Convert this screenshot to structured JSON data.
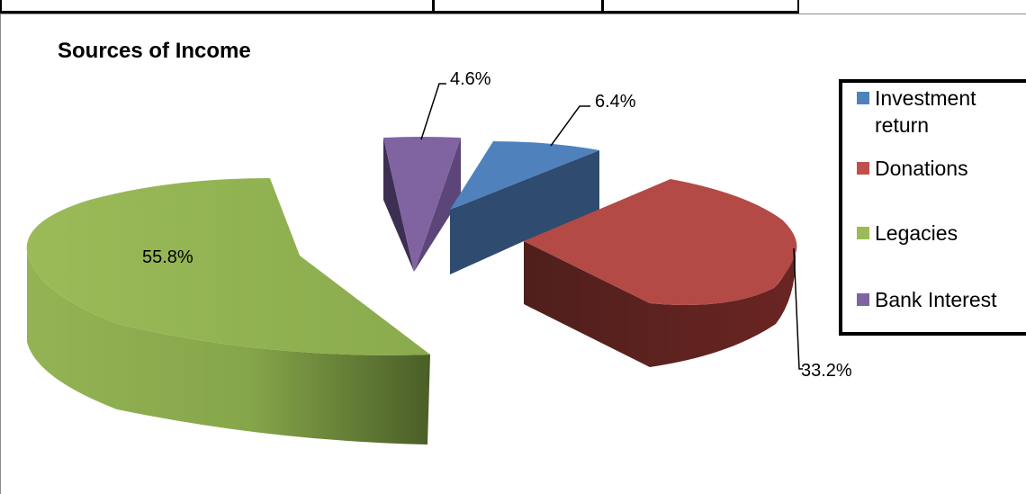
{
  "chart_data": {
    "type": "pie",
    "title": "Sources of Income",
    "labels": [
      "Investment return",
      "Donations",
      "Legacies",
      "Bank Interest"
    ],
    "values": [
      6.4,
      33.2,
      55.8,
      4.6
    ],
    "unit": "%",
    "data_labels": [
      "6.4%",
      "33.2%",
      "55.8%",
      "4.6%"
    ],
    "colors": [
      "#4f81bd",
      "#c0504d",
      "#9bbb59",
      "#8064a2"
    ],
    "legend_position": "right",
    "style": "3d-exploded"
  }
}
